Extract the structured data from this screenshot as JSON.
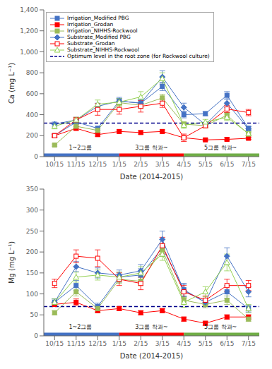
{
  "chart_data": [
    {
      "type": "line",
      "categories": [
        "10/15",
        "11/15",
        "12/15",
        "1/15",
        "2/15",
        "3/15",
        "4/15",
        "5/15",
        "6/15",
        "7/15"
      ],
      "xlabel": "Date (2014-2015)",
      "ylabel": "Ca (mg L⁻¹)",
      "ylim": [
        0,
        1400
      ],
      "yticks": [
        0,
        200,
        400,
        600,
        800,
        {
          "value": 1000,
          "label": "1,000"
        },
        {
          "value": 1200,
          "label": "1,200"
        },
        {
          "value": 1400,
          "label": "1,400"
        }
      ],
      "grid": false,
      "legend": "upper left",
      "series": [
        {
          "name": "Irrigation_Modified PBG",
          "color": "#4472C4",
          "marker": "square",
          "line_style": "solid",
          "values": [
            200,
            330,
            270,
            530,
            510,
            670,
            400,
            410,
            585,
            270
          ],
          "errors": [
            15,
            25,
            20,
            25,
            30,
            40,
            30,
            20,
            35,
            20
          ]
        },
        {
          "name": "Irrigation_Grodan",
          "color": "#FF0000",
          "marker": "square",
          "line_style": "solid",
          "values": [
            200,
            270,
            210,
            240,
            230,
            240,
            180,
            160,
            165,
            175
          ],
          "errors": [
            10,
            20,
            15,
            15,
            15,
            15,
            15,
            10,
            15,
            10
          ]
        },
        {
          "name": "Irrigation_NIHHS-Rockwool",
          "color": "#9BBB59",
          "marker": "square",
          "line_style": "solid",
          "values": [
            110,
            290,
            250,
            515,
            490,
            560,
            310,
            295,
            395,
            215
          ],
          "errors": [
            10,
            25,
            20,
            30,
            30,
            35,
            20,
            20,
            25,
            15
          ]
        },
        {
          "name": "Substrate_Modified PBG",
          "color": "#4472C4",
          "marker": "diamond",
          "line_style": "solid",
          "values": [
            310,
            350,
            480,
            530,
            510,
            760,
            470,
            305,
            510,
            265
          ],
          "errors": [
            20,
            25,
            30,
            35,
            40,
            60,
            40,
            20,
            40,
            20
          ]
        },
        {
          "name": "Substrate_Grodan",
          "color": "#FF0000",
          "marker": "open_square",
          "line_style": "solid",
          "values": [
            200,
            350,
            450,
            450,
            480,
            510,
            180,
            295,
            455,
            420
          ],
          "errors": [
            15,
            25,
            55,
            45,
            55,
            40,
            35,
            20,
            35,
            30
          ]
        },
        {
          "name": "Substrate_NIHHS-Rockwool",
          "color": "#92D050",
          "marker": "open_triangle",
          "line_style": "solid",
          "values": [
            290,
            350,
            500,
            520,
            570,
            745,
            300,
            330,
            375,
            220
          ],
          "errors": [
            25,
            25,
            40,
            35,
            50,
            55,
            30,
            25,
            30,
            20
          ]
        }
      ],
      "reference_lines": [
        {
          "name": "Optimum level in the root zone (for Rockwool culture)",
          "value": 320,
          "color": "#00008B",
          "line_style": "dashed"
        }
      ],
      "bands": [
        {
          "x": [
            -0.5,
            3.0
          ],
          "color": "#4472C4",
          "label": "1~2그룹",
          "label_x": 1.2
        },
        {
          "x": [
            3.0,
            6.0
          ],
          "color": "#FF0000",
          "label": "3그룹 착과~",
          "label_x": 4.5
        },
        {
          "x": [
            6.0,
            9.5
          ],
          "color": "#70AD47",
          "label": "5그룹 착과~",
          "label_x": 7.7
        }
      ]
    },
    {
      "type": "line",
      "categories": [
        "10/15",
        "11/15",
        "12/15",
        "1/15",
        "2/15",
        "3/15",
        "4/15",
        "5/15",
        "6/15",
        "7/15"
      ],
      "xlabel": "Date (2014-2015)",
      "ylabel": "Mg (mg L⁻¹)",
      "ylim": [
        0,
        350
      ],
      "yticks": [
        0,
        50,
        100,
        150,
        200,
        250,
        300,
        350
      ],
      "grid": false,
      "series": [
        {
          "color": "#4472C4",
          "marker": "square",
          "line_style": "solid",
          "values": [
            80,
            120,
            70,
            140,
            145,
            210,
            110,
            80,
            105,
            65
          ],
          "errors": [
            8,
            12,
            8,
            12,
            15,
            20,
            15,
            10,
            15,
            8
          ]
        },
        {
          "color": "#FF0000",
          "marker": "square",
          "line_style": "solid",
          "values": [
            75,
            80,
            60,
            65,
            55,
            60,
            40,
            30,
            45,
            45
          ],
          "errors": [
            5,
            8,
            5,
            5,
            5,
            5,
            5,
            5,
            5,
            5
          ]
        },
        {
          "color": "#9BBB59",
          "marker": "square",
          "line_style": "solid",
          "values": [
            55,
            105,
            65,
            135,
            130,
            205,
            85,
            75,
            85,
            40
          ],
          "errors": [
            5,
            10,
            8,
            10,
            10,
            15,
            8,
            8,
            10,
            5
          ]
        },
        {
          "color": "#4472C4",
          "marker": "diamond",
          "line_style": "solid",
          "values": [
            80,
            165,
            150,
            145,
            155,
            230,
            108,
            80,
            190,
            105
          ],
          "errors": [
            8,
            12,
            12,
            12,
            15,
            20,
            15,
            10,
            20,
            12
          ]
        },
        {
          "color": "#FF0000",
          "marker": "open_square",
          "line_style": "solid",
          "values": [
            125,
            190,
            185,
            135,
            125,
            215,
            105,
            85,
            120,
            120
          ],
          "errors": [
            10,
            15,
            20,
            15,
            15,
            20,
            15,
            10,
            15,
            12
          ]
        },
        {
          "color": "#92D050",
          "marker": "open_triangle",
          "line_style": "solid",
          "values": [
            80,
            140,
            145,
            140,
            150,
            195,
            80,
            105,
            175,
            65
          ],
          "errors": [
            8,
            12,
            12,
            12,
            15,
            15,
            12,
            12,
            20,
            10
          ]
        }
      ],
      "reference_lines": [
        {
          "value": 70,
          "color": "#00008B",
          "line_style": "dashed"
        }
      ],
      "bands": [
        {
          "x": [
            -0.5,
            3.0
          ],
          "color": "#4472C4",
          "label": "1~2그룹",
          "label_x": 1.2
        },
        {
          "x": [
            3.0,
            6.0
          ],
          "color": "#FF0000",
          "label": "3그룹 착과~",
          "label_x": 4.5
        },
        {
          "x": [
            6.0,
            9.5
          ],
          "color": "#70AD47",
          "label": "5그룹 착과~",
          "label_x": 7.7
        }
      ]
    }
  ]
}
